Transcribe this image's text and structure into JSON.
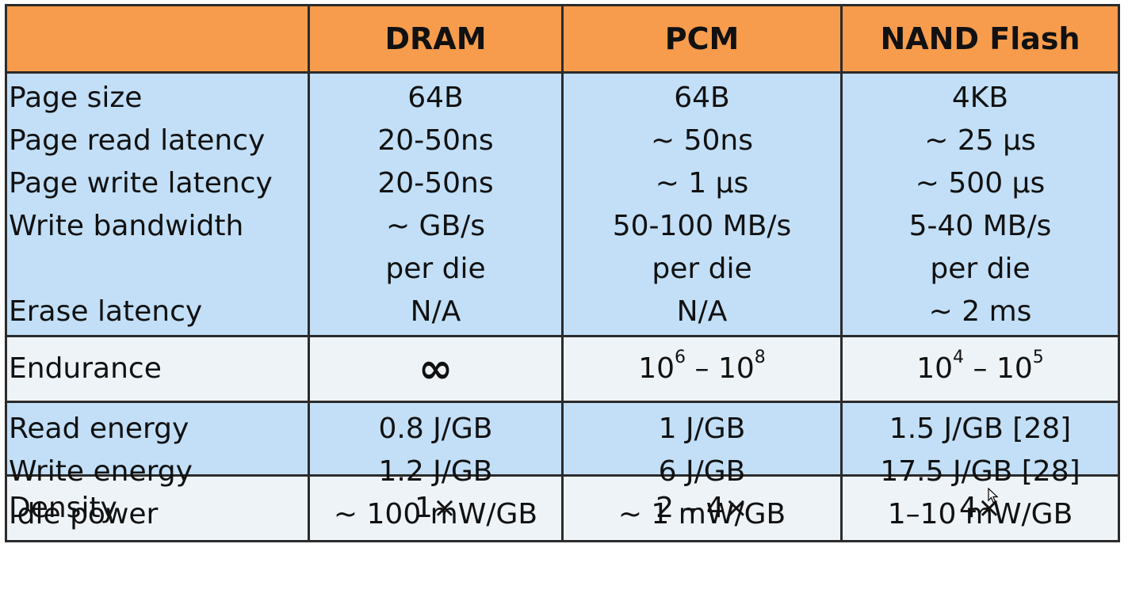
{
  "table": {
    "headers": [
      "",
      "DRAM",
      "PCM",
      "NAND  Flash"
    ],
    "group1": {
      "labels": [
        "Page  size",
        "Page  read  latency",
        "Page  write latency",
        "Write bandwidth",
        "",
        "Erase  latency"
      ],
      "dram": [
        "64B",
        "20-50ns",
        "20-50ns",
        "~ GB/s",
        "per die",
        "N/A"
      ],
      "pcm": [
        "64B",
        "~  50ns",
        "~  1 µs",
        "50-100 MB/s",
        "per die",
        "N/A"
      ],
      "nand": [
        "4KB",
        "~  25 µs",
        "~  500 µs",
        "5-40 MB/s",
        "per die",
        "~  2 ms"
      ]
    },
    "endurance": {
      "label": "Endurance",
      "dram": "∞",
      "pcm": {
        "base1": "10",
        "exp1": "6",
        "dash": " – ",
        "base2": "10",
        "exp2": "8"
      },
      "nand": {
        "base1": "10",
        "exp1": "4",
        "dash": " – ",
        "base2": "10",
        "exp2": "5"
      }
    },
    "group3": {
      "labels": [
        "Read  energy",
        "Write energy",
        "Idle power"
      ],
      "dram": [
        "0.8 J/GB",
        "1.2 J/GB",
        "~ 100 mW/GB"
      ],
      "pcm": [
        "1 J/GB",
        "6 J/GB",
        "~ 1 mW/GB"
      ],
      "nand": [
        "1.5 J/GB [28]",
        "17.5 J/GB [28]",
        "1–10 mW/GB"
      ]
    },
    "density": {
      "label": "Density",
      "dram": "1×",
      "pcm": "2 – 4×",
      "nand": "4×"
    }
  },
  "colors": {
    "header_bg": "#f79c4c",
    "blue_row_bg": "#c2dff7",
    "grey_row_bg": "#eef3f7",
    "border": "#2b2b2b"
  }
}
